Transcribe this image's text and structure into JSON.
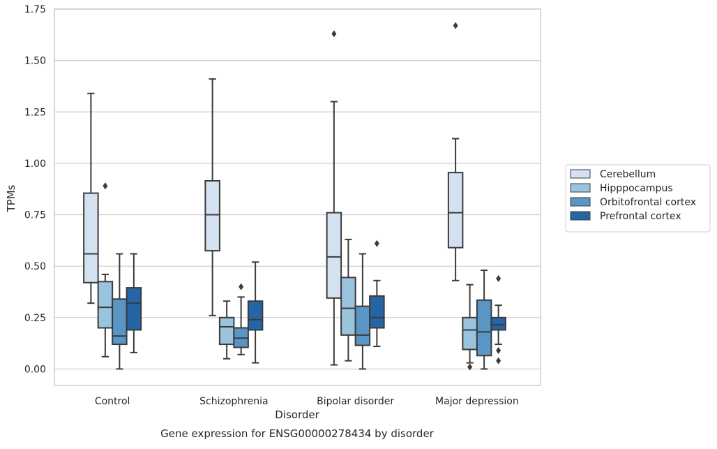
{
  "chart_data": {
    "type": "box",
    "title": "",
    "caption": "Gene expression for ENSG00000278434 by disorder",
    "xlabel": "Disorder",
    "ylabel": "TPMs",
    "ylim": [
      -0.08,
      1.75
    ],
    "yticks": [
      "0.00",
      "0.25",
      "0.50",
      "0.75",
      "1.00",
      "1.25",
      "1.50",
      "1.75"
    ],
    "categories": [
      "Control",
      "Schizophrenia",
      "Bipolar disorder",
      "Major depression"
    ],
    "grid": "horizontal",
    "legend_position": "right",
    "series": [
      {
        "name": "Cerebellum",
        "color": "#d3e1f1",
        "boxes": [
          {
            "whisker_low": 0.32,
            "q1": 0.42,
            "median": 0.56,
            "q3": 0.855,
            "whisker_high": 1.34,
            "outliers": []
          },
          {
            "whisker_low": 0.26,
            "q1": 0.575,
            "median": 0.75,
            "q3": 0.915,
            "whisker_high": 1.41,
            "outliers": []
          },
          {
            "whisker_low": 0.02,
            "q1": 0.345,
            "median": 0.545,
            "q3": 0.76,
            "whisker_high": 1.3,
            "outliers": [
              1.63
            ]
          },
          {
            "whisker_low": 0.43,
            "q1": 0.59,
            "median": 0.76,
            "q3": 0.955,
            "whisker_high": 1.12,
            "outliers": [
              1.67
            ]
          }
        ]
      },
      {
        "name": "Hipppocampus",
        "color": "#9ac3de",
        "boxes": [
          {
            "whisker_low": 0.06,
            "q1": 0.2,
            "median": 0.3,
            "q3": 0.425,
            "whisker_high": 0.46,
            "outliers": [
              0.89
            ]
          },
          {
            "whisker_low": 0.05,
            "q1": 0.12,
            "median": 0.205,
            "q3": 0.25,
            "whisker_high": 0.33,
            "outliers": []
          },
          {
            "whisker_low": 0.04,
            "q1": 0.165,
            "median": 0.295,
            "q3": 0.445,
            "whisker_high": 0.63,
            "outliers": []
          },
          {
            "whisker_low": 0.03,
            "q1": 0.095,
            "median": 0.19,
            "q3": 0.25,
            "whisker_high": 0.41,
            "outliers": [
              0.01
            ]
          }
        ]
      },
      {
        "name": "Orbitofrontal cortex",
        "color": "#5996c6",
        "boxes": [
          {
            "whisker_low": 0.0,
            "q1": 0.12,
            "median": 0.16,
            "q3": 0.34,
            "whisker_high": 0.56,
            "outliers": []
          },
          {
            "whisker_low": 0.07,
            "q1": 0.105,
            "median": 0.15,
            "q3": 0.2,
            "whisker_high": 0.35,
            "outliers": [
              0.4
            ]
          },
          {
            "whisker_low": 0.0,
            "q1": 0.115,
            "median": 0.165,
            "q3": 0.305,
            "whisker_high": 0.56,
            "outliers": []
          },
          {
            "whisker_low": 0.0,
            "q1": 0.065,
            "median": 0.18,
            "q3": 0.335,
            "whisker_high": 0.48,
            "outliers": []
          }
        ]
      },
      {
        "name": "Prefrontal cortex",
        "color": "#2565a6",
        "boxes": [
          {
            "whisker_low": 0.08,
            "q1": 0.19,
            "median": 0.32,
            "q3": 0.395,
            "whisker_high": 0.56,
            "outliers": []
          },
          {
            "whisker_low": 0.03,
            "q1": 0.19,
            "median": 0.24,
            "q3": 0.33,
            "whisker_high": 0.52,
            "outliers": []
          },
          {
            "whisker_low": 0.11,
            "q1": 0.2,
            "median": 0.25,
            "q3": 0.355,
            "whisker_high": 0.43,
            "outliers": [
              0.61
            ]
          },
          {
            "whisker_low": 0.12,
            "q1": 0.19,
            "median": 0.215,
            "q3": 0.25,
            "whisker_high": 0.31,
            "outliers": [
              0.44,
              0.09,
              0.04
            ]
          }
        ]
      }
    ]
  }
}
